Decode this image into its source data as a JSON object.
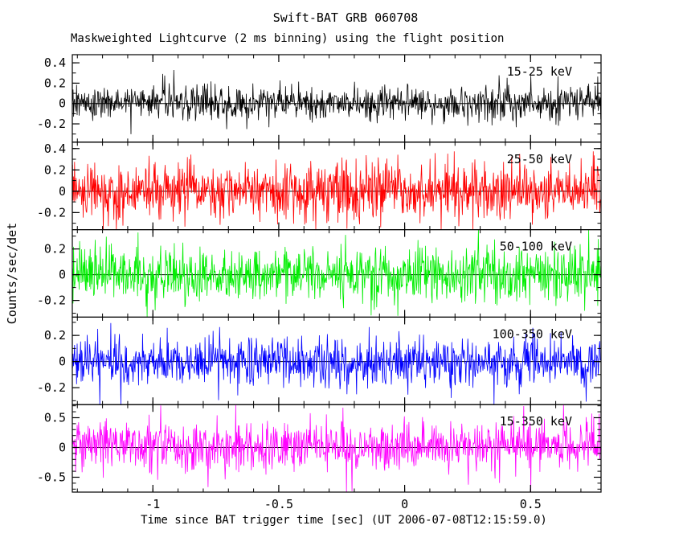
{
  "chart_data": {
    "type": "line",
    "title": "Swift-BAT GRB 060708",
    "subtitle": "Maskweighted Lightcurve (2 ms binning) using the flight position",
    "xlabel": "Time since BAT trigger time [sec] (UT 2006-07-08T12:15:59.0)",
    "ylabel": "Counts/sec/det",
    "x_range": [
      -1.32,
      0.78
    ],
    "bin_seconds": 0.002,
    "x_ticks": [
      -1,
      -0.5,
      0,
      0.5
    ],
    "x_tick_labels": [
      "-1",
      "-0.5",
      "0",
      "0.5"
    ],
    "x_minor_step": 0.1,
    "grid": false,
    "legend_position": "in-panel-right",
    "signal_description": "mask-weighted count-rate noise fluctuating about zero in every energy band; no obvious burst peak in window",
    "panels": [
      {
        "band_label": "15-25 keV",
        "color": "#000000",
        "ylim": [
          -0.38,
          0.48
        ],
        "yticks": [
          -0.2,
          0,
          0.2,
          0.4
        ],
        "ytick_labels": [
          "-0.2",
          "0",
          "0.2",
          "0.4"
        ],
        "y_minor_step": 0.1,
        "mean": 0,
        "noise_sigma": 0.085,
        "seed": 17
      },
      {
        "band_label": "25-50 keV",
        "color": "#ff0000",
        "ylim": [
          -0.36,
          0.46
        ],
        "yticks": [
          -0.2,
          0,
          0.2,
          0.4
        ],
        "ytick_labels": [
          "-0.2",
          "0",
          "0.2",
          "0.4"
        ],
        "y_minor_step": 0.1,
        "mean": 0,
        "noise_sigma": 0.125,
        "seed": 23
      },
      {
        "band_label": "50-100 keV",
        "color": "#00ee00",
        "ylim": [
          -0.33,
          0.35
        ],
        "yticks": [
          -0.2,
          0,
          0.2
        ],
        "ytick_labels": [
          "-0.2",
          "0",
          "0.2"
        ],
        "y_minor_step": 0.1,
        "mean": 0,
        "noise_sigma": 0.105,
        "seed": 31
      },
      {
        "band_label": "100-350 keV",
        "color": "#0000ff",
        "ylim": [
          -0.33,
          0.34
        ],
        "yticks": [
          -0.2,
          0,
          0.2
        ],
        "ytick_labels": [
          "-0.2",
          "0",
          "0.2"
        ],
        "y_minor_step": 0.1,
        "mean": 0,
        "noise_sigma": 0.09,
        "seed": 41
      },
      {
        "band_label": "15-350 keV",
        "color": "#ff00ff",
        "ylim": [
          -0.75,
          0.72
        ],
        "yticks": [
          -0.5,
          0,
          0.5
        ],
        "ytick_labels": [
          "-0.5",
          "0",
          "0.5"
        ],
        "y_minor_step": 0.1,
        "mean": 0.02,
        "noise_sigma": 0.2,
        "seed": 53
      }
    ]
  }
}
